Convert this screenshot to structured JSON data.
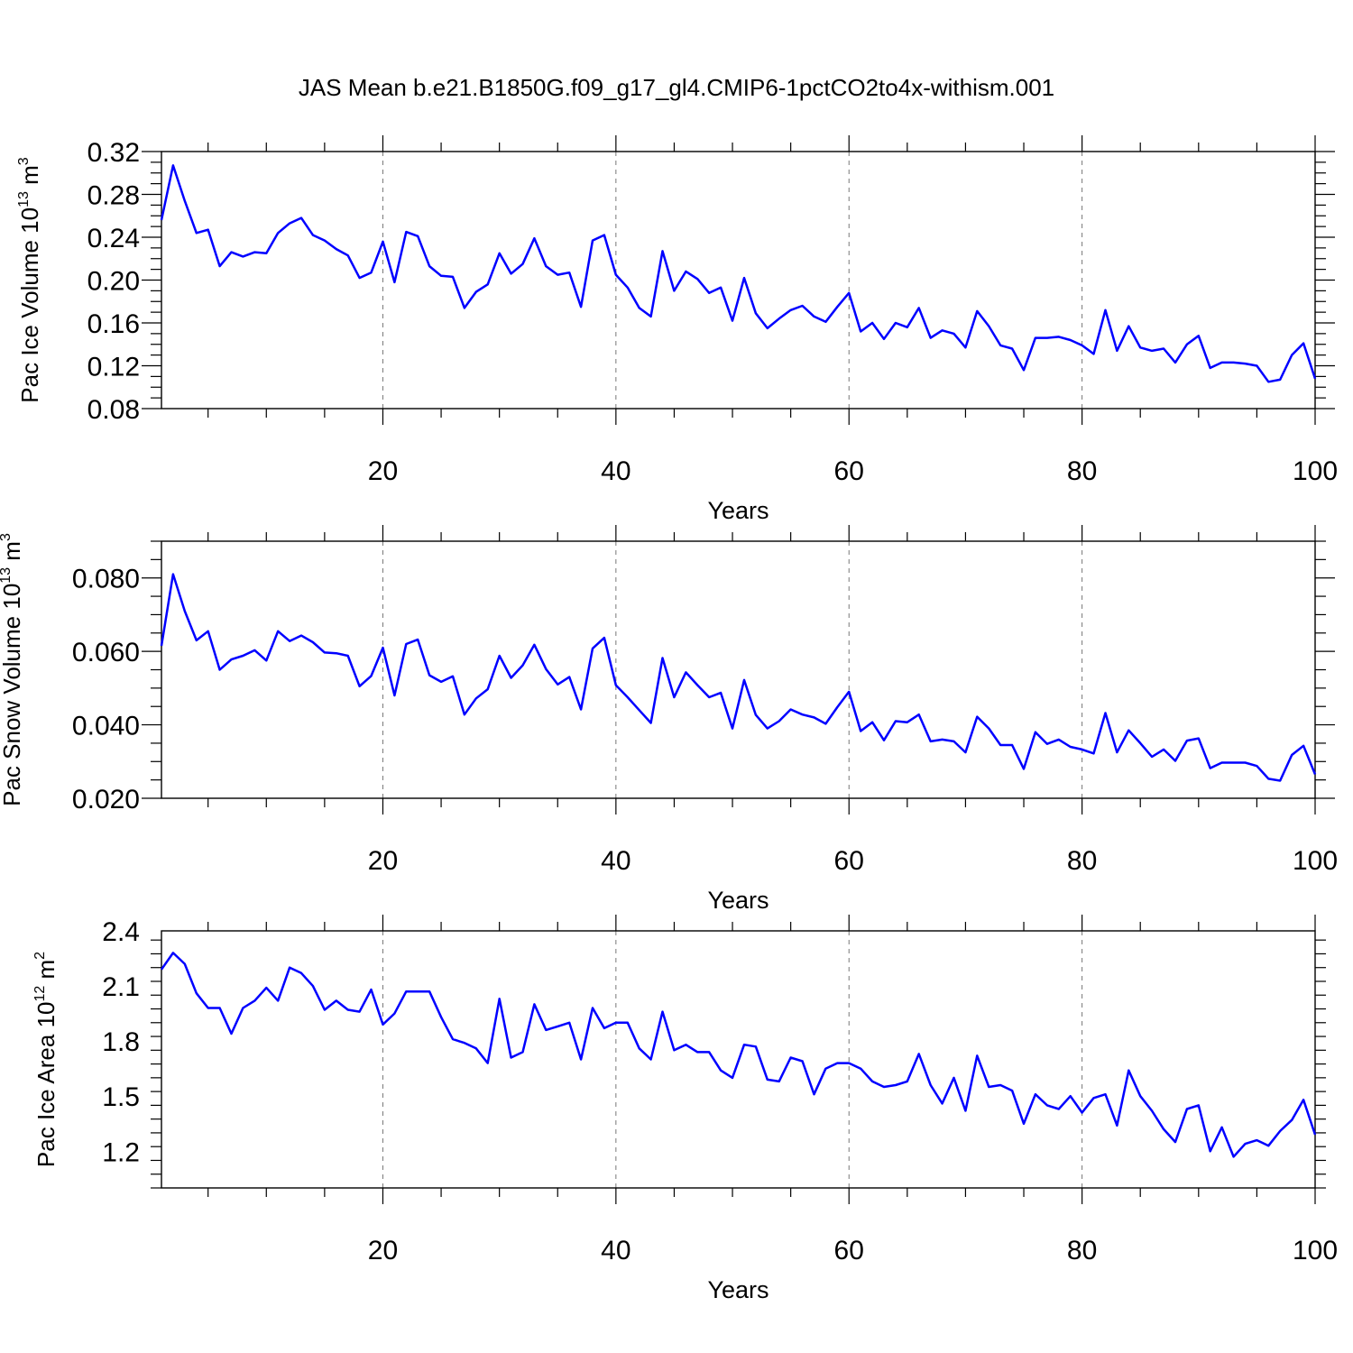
{
  "title": "JAS Mean b.e21.B1850G.f09_g17_gl4.CMIP6-1pctCO2to4x-withism.001",
  "chart_data": [
    {
      "type": "line",
      "ylabel": "Pac Ice Volume 10",
      "ylabel_exp": "13",
      "ylabel_unit": " m",
      "ylabel_unit_exp": "3",
      "xlabel": "Years",
      "xlim": [
        1,
        100
      ],
      "ylim": [
        0.08,
        0.32
      ],
      "yticks": [
        "0.08",
        "0.12",
        "0.16",
        "0.20",
        "0.24",
        "0.28",
        "0.32"
      ],
      "xticks": [
        "20",
        "40",
        "60",
        "80",
        "100"
      ],
      "grid_x": [
        20,
        40,
        60,
        80
      ],
      "color": "#0000ff",
      "x_start": 1,
      "values": [
        0.256,
        0.307,
        0.274,
        0.244,
        0.247,
        0.213,
        0.226,
        0.222,
        0.226,
        0.225,
        0.244,
        0.253,
        0.258,
        0.242,
        0.237,
        0.229,
        0.223,
        0.202,
        0.207,
        0.236,
        0.198,
        0.245,
        0.241,
        0.213,
        0.204,
        0.203,
        0.174,
        0.189,
        0.196,
        0.225,
        0.206,
        0.215,
        0.239,
        0.213,
        0.205,
        0.207,
        0.175,
        0.237,
        0.242,
        0.205,
        0.193,
        0.174,
        0.166,
        0.227,
        0.19,
        0.208,
        0.201,
        0.188,
        0.193,
        0.162,
        0.202,
        0.169,
        0.155,
        0.164,
        0.172,
        0.176,
        0.166,
        0.161,
        0.175,
        0.188,
        0.152,
        0.16,
        0.145,
        0.16,
        0.156,
        0.174,
        0.146,
        0.153,
        0.15,
        0.137,
        0.171,
        0.157,
        0.139,
        0.136,
        0.116,
        0.146,
        0.146,
        0.147,
        0.144,
        0.139,
        0.131,
        0.172,
        0.134,
        0.157,
        0.137,
        0.134,
        0.136,
        0.123,
        0.14,
        0.148,
        0.118,
        0.123,
        0.123,
        0.122,
        0.12,
        0.105,
        0.107,
        0.13,
        0.141,
        0.108
      ]
    },
    {
      "type": "line",
      "ylabel": "Pac Snow Volume 10",
      "ylabel_exp": "13",
      "ylabel_unit": " m",
      "ylabel_unit_exp": "3",
      "xlabel": "Years",
      "xlim": [
        1,
        100
      ],
      "ylim": [
        0.02,
        0.09
      ],
      "yticks": [
        "0.020",
        "0.040",
        "0.060",
        "0.080"
      ],
      "xticks": [
        "20",
        "40",
        "60",
        "80",
        "100"
      ],
      "grid_x": [
        20,
        40,
        60,
        80
      ],
      "color": "#0000ff",
      "x_start": 1,
      "values": [
        0.0615,
        0.081,
        0.071,
        0.063,
        0.0655,
        0.055,
        0.0578,
        0.0588,
        0.0603,
        0.0575,
        0.0655,
        0.0628,
        0.0643,
        0.0625,
        0.0597,
        0.0595,
        0.0588,
        0.0505,
        0.0533,
        0.061,
        0.048,
        0.062,
        0.0632,
        0.0535,
        0.0517,
        0.0532,
        0.0428,
        0.0472,
        0.0497,
        0.0588,
        0.0528,
        0.0562,
        0.0618,
        0.0552,
        0.051,
        0.053,
        0.0442,
        0.0608,
        0.0637,
        0.0508,
        0.0475,
        0.044,
        0.0405,
        0.0582,
        0.0475,
        0.0543,
        0.0508,
        0.0475,
        0.0487,
        0.039,
        0.0522,
        0.0427,
        0.039,
        0.041,
        0.0442,
        0.0428,
        0.042,
        0.0403,
        0.0448,
        0.049,
        0.0383,
        0.0407,
        0.0358,
        0.041,
        0.0407,
        0.0428,
        0.0355,
        0.036,
        0.0355,
        0.0325,
        0.0422,
        0.039,
        0.0345,
        0.0345,
        0.028,
        0.038,
        0.0348,
        0.036,
        0.034,
        0.0333,
        0.0322,
        0.0432,
        0.0325,
        0.0385,
        0.035,
        0.0313,
        0.0333,
        0.0302,
        0.0357,
        0.0363,
        0.0282,
        0.0297,
        0.0297,
        0.0297,
        0.0288,
        0.0253,
        0.0248,
        0.0318,
        0.0343,
        0.0265
      ]
    },
    {
      "type": "line",
      "ylabel": "Pac Ice Area 10",
      "ylabel_exp": "12",
      "ylabel_unit": " m",
      "ylabel_unit_exp": "2",
      "xlabel": "Years",
      "xlim": [
        1,
        100
      ],
      "ylim": [
        1.0,
        2.4
      ],
      "yticks": [
        "1.2",
        "1.5",
        "1.8",
        "2.1",
        "2.4"
      ],
      "xticks": [
        "20",
        "40",
        "60",
        "80",
        "100"
      ],
      "grid_x": [
        20,
        40,
        60,
        80
      ],
      "color": "#0000ff",
      "x_start": 1,
      "values": [
        2.19,
        2.28,
        2.22,
        2.06,
        1.98,
        1.98,
        1.84,
        1.98,
        2.02,
        2.09,
        2.02,
        2.2,
        2.17,
        2.1,
        1.97,
        2.02,
        1.97,
        1.96,
        2.08,
        1.89,
        1.95,
        2.07,
        2.07,
        2.07,
        1.93,
        1.81,
        1.79,
        1.76,
        1.68,
        2.03,
        1.71,
        1.74,
        2.0,
        1.86,
        1.88,
        1.9,
        1.7,
        1.98,
        1.87,
        1.9,
        1.9,
        1.76,
        1.7,
        1.96,
        1.75,
        1.78,
        1.74,
        1.74,
        1.64,
        1.6,
        1.78,
        1.77,
        1.59,
        1.58,
        1.71,
        1.69,
        1.51,
        1.65,
        1.68,
        1.68,
        1.65,
        1.58,
        1.55,
        1.56,
        1.58,
        1.73,
        1.56,
        1.46,
        1.6,
        1.42,
        1.72,
        1.55,
        1.56,
        1.53,
        1.35,
        1.51,
        1.45,
        1.43,
        1.5,
        1.41,
        1.49,
        1.51,
        1.34,
        1.64,
        1.5,
        1.42,
        1.32,
        1.25,
        1.43,
        1.45,
        1.2,
        1.33,
        1.17,
        1.24,
        1.26,
        1.23,
        1.31,
        1.37,
        1.48,
        1.29
      ]
    }
  ]
}
